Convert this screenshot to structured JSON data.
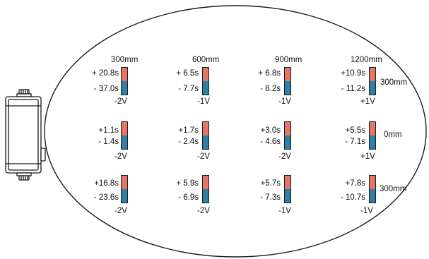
{
  "colors": {
    "positive": "#e37765",
    "negative": "#2f7fa8",
    "outline": "#1a1a1a"
  },
  "device": {
    "icon": "sensor-device-icon"
  },
  "columns": [
    "300mm",
    "600mm",
    "900mm",
    "1200mm"
  ],
  "rows": [
    {
      "label": "300mm",
      "cells": [
        {
          "plus": "+ 20.8s",
          "minus": "- 37.0s",
          "volt": "-2V"
        },
        {
          "plus": "+ 6.5s",
          "minus": "- 7.7s",
          "volt": "-1V"
        },
        {
          "plus": "+ 6.8s",
          "minus": "- 8.2s",
          "volt": "-1V"
        },
        {
          "plus": "+10.9s",
          "minus": "- 11.2s",
          "volt": "+1V"
        }
      ]
    },
    {
      "label": "0mm",
      "cells": [
        {
          "plus": "+1.1s",
          "minus": "- 1.4s",
          "volt": "-2V"
        },
        {
          "plus": "+1.7s",
          "minus": "- 2.4s",
          "volt": "-2V"
        },
        {
          "plus": "+3.0s",
          "minus": "- 4.6s",
          "volt": "-2V"
        },
        {
          "plus": "+5.5s",
          "minus": "- 7.1s",
          "volt": "+1V"
        }
      ]
    },
    {
      "label": "300mm",
      "cells": [
        {
          "plus": "+16.8s",
          "minus": "- 23.6s",
          "volt": "-2V"
        },
        {
          "plus": "+ 5.9s",
          "minus": "- 6.9s",
          "volt": "-2V"
        },
        {
          "plus": "+5.7s",
          "minus": "- 7.3s",
          "volt": "-1V"
        },
        {
          "plus": "+7.8s",
          "minus": "- 10.7s",
          "volt": "-1V"
        }
      ]
    }
  ]
}
